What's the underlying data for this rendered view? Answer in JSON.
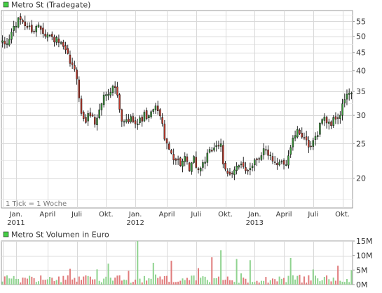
{
  "colors": {
    "background": "#ffffff",
    "grid": "#d9d9d9",
    "frame": "#9a9a9a",
    "up": "#3a9a3a",
    "down": "#c0392b",
    "wick": "#111111",
    "vol_up": "#8fd38f",
    "vol_down": "#e07b7b",
    "legend_fill": "#44cc44",
    "text": "#333333",
    "note": "#7a7a7a"
  },
  "chart_data": [
    {
      "type": "candlestick",
      "title": "Metro St (Tradegate)",
      "note": "1 Tick = 1 Woche",
      "y_scale": "log",
      "ylim": [
        16.5,
        59
      ],
      "y_ticks": [
        20,
        25,
        30,
        35,
        40,
        45,
        50,
        55
      ],
      "y_tick_labels": [
        "20",
        "25",
        "30",
        "35",
        "40",
        "45",
        "50",
        "55"
      ],
      "x_tick_labels": [
        {
          "label": "Jan.",
          "year": "2011",
          "week": 6
        },
        {
          "label": "April",
          "year": "",
          "week": 20
        },
        {
          "label": "Juli",
          "year": "",
          "week": 33
        },
        {
          "label": "Okt.",
          "year": "",
          "week": 46
        },
        {
          "label": "Jan.",
          "year": "2012",
          "week": 59
        },
        {
          "label": "April",
          "year": "",
          "week": 73
        },
        {
          "label": "Juli",
          "year": "",
          "week": 86
        },
        {
          "label": "Okt.",
          "year": "",
          "week": 99
        },
        {
          "label": "Jan.",
          "year": "2013",
          "week": 112
        },
        {
          "label": "April",
          "year": "",
          "week": 125
        },
        {
          "label": "Juli",
          "year": "",
          "week": 138
        },
        {
          "label": "Okt.",
          "year": "",
          "week": 151
        }
      ],
      "x_grid_weeks": [
        0,
        6,
        20,
        33,
        46,
        59,
        73,
        86,
        99,
        112,
        125,
        138,
        151
      ],
      "n_weeks": 156,
      "close_anchors": [
        [
          0,
          47.5
        ],
        [
          2,
          47.5
        ],
        [
          5,
          53
        ],
        [
          8,
          56
        ],
        [
          11,
          53
        ],
        [
          14,
          52
        ],
        [
          16,
          54
        ],
        [
          19,
          51
        ],
        [
          22,
          49.5
        ],
        [
          25,
          48
        ],
        [
          28,
          45
        ],
        [
          31,
          41
        ],
        [
          33,
          38.5
        ],
        [
          35,
          30
        ],
        [
          37,
          29
        ],
        [
          39,
          30.5
        ],
        [
          41,
          28.5
        ],
        [
          43,
          31
        ],
        [
          45,
          34
        ],
        [
          48,
          35.5
        ],
        [
          50,
          36
        ],
        [
          53,
          28.5
        ],
        [
          56,
          29
        ],
        [
          58,
          29.5
        ],
        [
          60,
          28.5
        ],
        [
          63,
          30
        ],
        [
          65,
          29.5
        ],
        [
          67,
          31
        ],
        [
          69,
          31.5
        ],
        [
          71,
          28
        ],
        [
          73,
          24.5
        ],
        [
          76,
          23
        ],
        [
          79,
          22
        ],
        [
          81,
          22.5
        ],
        [
          83,
          21
        ],
        [
          85,
          22.5
        ],
        [
          87,
          21
        ],
        [
          89,
          22
        ],
        [
          91,
          23
        ],
        [
          93,
          24
        ],
        [
          95,
          25
        ],
        [
          97,
          24.5
        ],
        [
          98,
          21.5
        ],
        [
          100,
          20.5
        ],
        [
          102,
          21
        ],
        [
          104,
          21.5
        ],
        [
          106,
          21.5
        ],
        [
          108,
          21
        ],
        [
          110,
          21.5
        ],
        [
          112,
          22.5
        ],
        [
          114,
          23
        ],
        [
          116,
          24
        ],
        [
          118,
          23.5
        ],
        [
          120,
          22
        ],
        [
          122,
          21.5
        ],
        [
          124,
          22.5
        ],
        [
          126,
          22
        ],
        [
          128,
          24.5
        ],
        [
          130,
          26.5
        ],
        [
          132,
          27
        ],
        [
          134,
          26
        ],
        [
          136,
          24
        ],
        [
          138,
          25
        ],
        [
          140,
          27
        ],
        [
          142,
          29.5
        ],
        [
          144,
          29
        ],
        [
          146,
          28.5
        ],
        [
          148,
          29.5
        ],
        [
          150,
          30
        ],
        [
          152,
          33.5
        ],
        [
          154,
          34.5
        ],
        [
          155,
          34.5
        ]
      ]
    },
    {
      "type": "bar",
      "title": "Metro St Volumen in Euro",
      "ylim": [
        0,
        15
      ],
      "y_ticks": [
        0,
        5,
        10,
        15
      ],
      "y_tick_labels": [
        "0M",
        "5M",
        "10M",
        "15M"
      ],
      "y_unit": "M",
      "values_source": "weekly volume, mostly 1–4 M with spikes",
      "spikes": [
        [
          60,
          15.1
        ],
        [
          97,
          11.8
        ],
        [
          93,
          9.4
        ],
        [
          75,
          8.2
        ],
        [
          104,
          8.8
        ],
        [
          149,
          6.5
        ],
        [
          67,
          7.5
        ],
        [
          47,
          7.2
        ],
        [
          128,
          9.2
        ],
        [
          110,
          8.4
        ]
      ]
    }
  ]
}
